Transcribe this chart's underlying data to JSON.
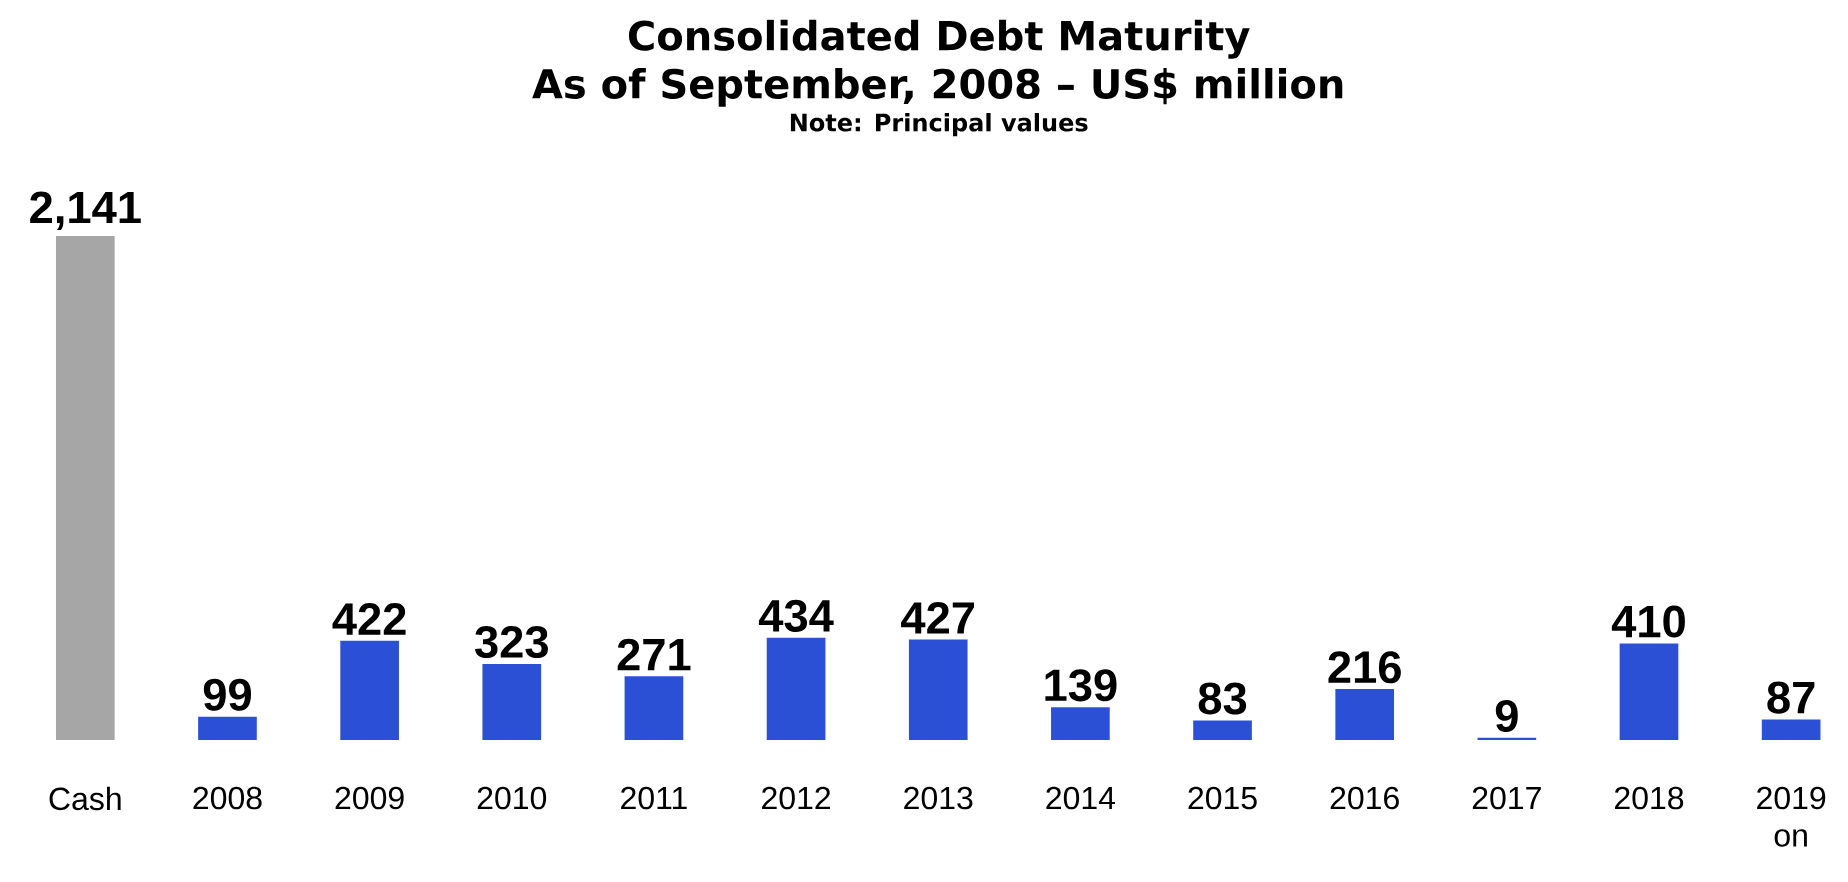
{
  "chart_data": {
    "type": "bar",
    "title": "Consolidated Debt Maturity",
    "subtitle": "As of September, 2008 – US$ million",
    "annotations": [
      "Note: Principal values"
    ],
    "categories": [
      "Cash",
      "2008",
      "2009",
      "2010",
      "2011",
      "2012",
      "2013",
      "2014",
      "2015",
      "2016",
      "2017",
      "2018",
      "2019 on"
    ],
    "values": [
      2141,
      99,
      422,
      323,
      271,
      434,
      427,
      139,
      83,
      216,
      9,
      410,
      87
    ],
    "value_labels": [
      "2,141",
      "99",
      "422",
      "323",
      "271",
      "434",
      "427",
      "139",
      "83",
      "216",
      "9",
      "410",
      "87"
    ],
    "colors": [
      "#a6a6a6",
      "#2b50d6",
      "#2b50d6",
      "#2b50d6",
      "#2b50d6",
      "#2b50d6",
      "#2b50d6",
      "#2b50d6",
      "#2b50d6",
      "#2b50d6",
      "#2b50d6",
      "#2b50d6",
      "#2b50d6"
    ]
  }
}
